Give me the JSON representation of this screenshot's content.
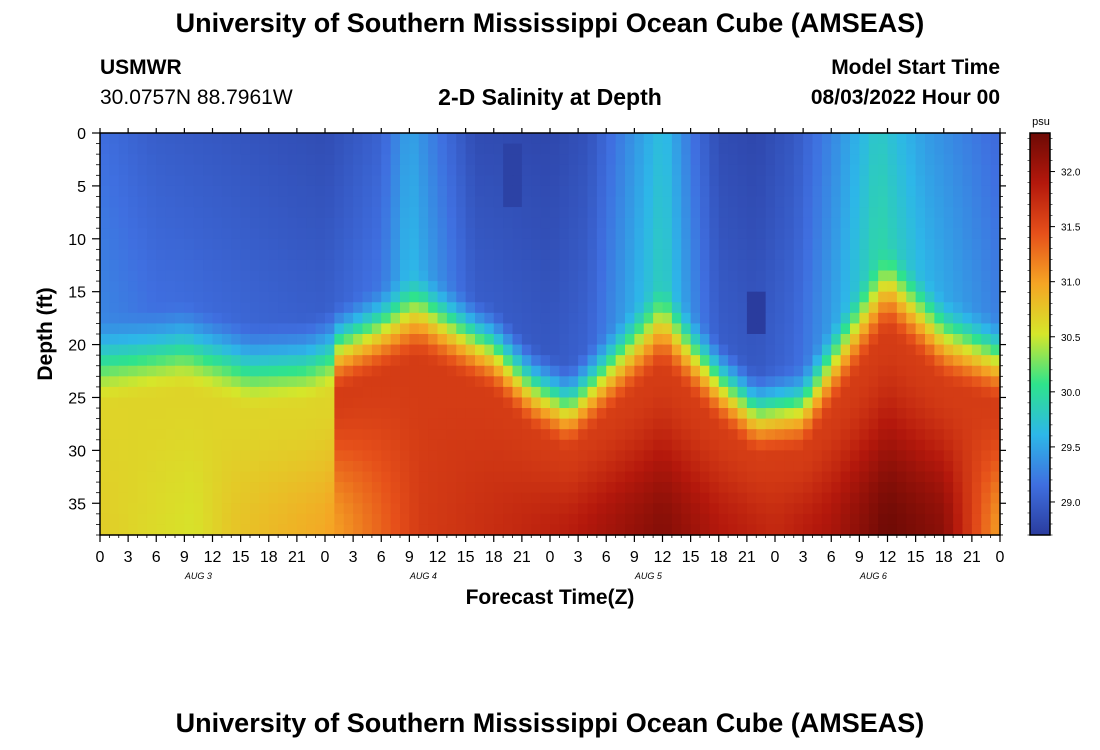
{
  "header": {
    "title": "University of Southern Mississippi Ocean Cube (AMSEAS)",
    "station": "USMWR",
    "coords": "30.0757N  88.7961W",
    "subtitle": "2-D Salinity at Depth",
    "model_start_label": "Model Start Time",
    "model_start_value": "08/03/2022 Hour 00"
  },
  "footer": {
    "title": "University of Southern Mississippi Ocean Cube (AMSEAS)"
  },
  "chart_data": {
    "type": "heatmap",
    "title": "2-D Salinity at Depth",
    "xlabel": "Forecast Time(Z)",
    "ylabel": "Depth (ft)",
    "x_tick_labels": [
      "0",
      "3",
      "6",
      "9",
      "12",
      "15",
      "18",
      "21",
      "0",
      "3",
      "6",
      "9",
      "12",
      "15",
      "18",
      "21",
      "0",
      "3",
      "6",
      "9",
      "12",
      "15",
      "18",
      "21",
      "0",
      "3",
      "6",
      "9",
      "12",
      "15",
      "18",
      "21",
      "0"
    ],
    "x_range_hours": [
      0,
      96
    ],
    "day_labels": [
      {
        "label": "AUG 3",
        "hour": 10.5
      },
      {
        "label": "AUG 4",
        "hour": 34.5
      },
      {
        "label": "AUG 5",
        "hour": 58.5
      },
      {
        "label": "AUG 6",
        "hour": 82.5
      }
    ],
    "y_range_ft": [
      0,
      38
    ],
    "y_tick_labels": [
      "0",
      "5",
      "10",
      "15",
      "20",
      "25",
      "30",
      "35"
    ],
    "y_tick_values": [
      0,
      5,
      10,
      15,
      20,
      25,
      30,
      35
    ],
    "colorbar": {
      "unit": "psu",
      "range": [
        28.7,
        32.35
      ],
      "tick_labels": [
        "29.0",
        "29.5",
        "30.0",
        "30.5",
        "31.0",
        "31.5",
        "32.0"
      ],
      "tick_values": [
        29.0,
        29.5,
        30.0,
        30.5,
        31.0,
        31.5,
        32.0
      ],
      "colors": [
        "#2a3c9e",
        "#3f6fe0",
        "#2db7e8",
        "#2ee38c",
        "#d6e62a",
        "#f5a524",
        "#e6501a",
        "#b4180c",
        "#6e0a05"
      ]
    },
    "surface_salinity_by_hour": [
      [
        0,
        29.15
      ],
      [
        6,
        29.0
      ],
      [
        12,
        28.95
      ],
      [
        18,
        28.9
      ],
      [
        24,
        28.85
      ],
      [
        30,
        29.05
      ],
      [
        33,
        29.5
      ],
      [
        36,
        29.2
      ],
      [
        40,
        28.85
      ],
      [
        48,
        28.8
      ],
      [
        52,
        28.9
      ],
      [
        57,
        29.4
      ],
      [
        60,
        29.7
      ],
      [
        63,
        29.2
      ],
      [
        66,
        28.85
      ],
      [
        70,
        28.8
      ],
      [
        74,
        28.95
      ],
      [
        78,
        29.3
      ],
      [
        83,
        29.8
      ],
      [
        88,
        29.45
      ],
      [
        96,
        29.1
      ]
    ],
    "halocline_depth_ft_by_hour": [
      [
        0,
        23
      ],
      [
        9,
        21.5
      ],
      [
        16,
        23.5
      ],
      [
        22,
        23
      ],
      [
        34,
        18.5
      ],
      [
        42,
        22
      ],
      [
        46,
        25.5
      ],
      [
        50,
        27.5
      ],
      [
        60,
        19.5
      ],
      [
        66,
        25
      ],
      [
        70,
        28
      ],
      [
        75,
        27.5
      ],
      [
        84,
        16
      ],
      [
        90,
        21
      ],
      [
        96,
        23
      ]
    ],
    "bottom_salinity_by_hour": [
      [
        0,
        30.7
      ],
      [
        10,
        30.55
      ],
      [
        14,
        30.75
      ],
      [
        24,
        30.95
      ],
      [
        34,
        31.6
      ],
      [
        44,
        31.75
      ],
      [
        50,
        31.85
      ],
      [
        60,
        32.2
      ],
      [
        66,
        31.9
      ],
      [
        72,
        31.75
      ],
      [
        78,
        31.95
      ],
      [
        84,
        32.35
      ],
      [
        90,
        32.15
      ],
      [
        96,
        31.0
      ]
    ],
    "deep_region_salinity": [
      {
        "hours": [
          0,
          24
        ],
        "value": 30.65,
        "note": "orange lower layer"
      },
      {
        "hours": [
          26,
          96
        ],
        "value": 31.6,
        "note": "red lower layer"
      }
    ],
    "anomalies": [
      {
        "hour": 44,
        "depth_ft": [
          1,
          7
        ],
        "salinity": 28.75
      },
      {
        "hour": 70,
        "depth_ft": [
          15,
          18.5
        ],
        "salinity": 28.7
      }
    ]
  }
}
